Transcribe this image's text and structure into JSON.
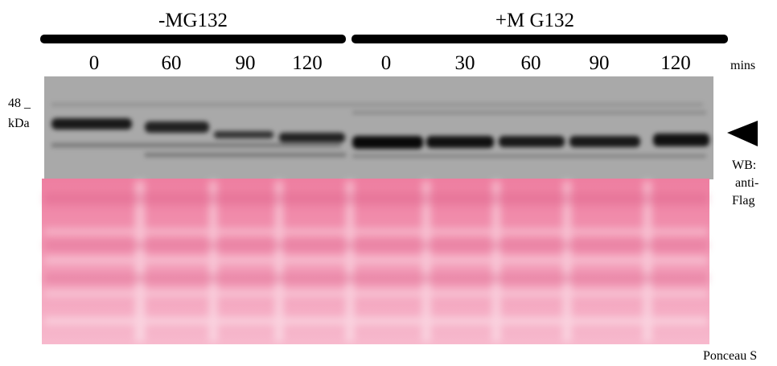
{
  "groups": [
    {
      "label": "-MG132",
      "lanes": [
        "0",
        "60",
        "90",
        "120"
      ]
    },
    {
      "label": "+M G132",
      "lanes": [
        "0",
        "30",
        "60",
        "90",
        "120"
      ]
    }
  ],
  "unit": "mins",
  "marker": {
    "size": "48 _",
    "unit": "kDa"
  },
  "blot_label": [
    "WB:",
    "anti-",
    "Flag"
  ],
  "stain_label": "Ponceau S"
}
